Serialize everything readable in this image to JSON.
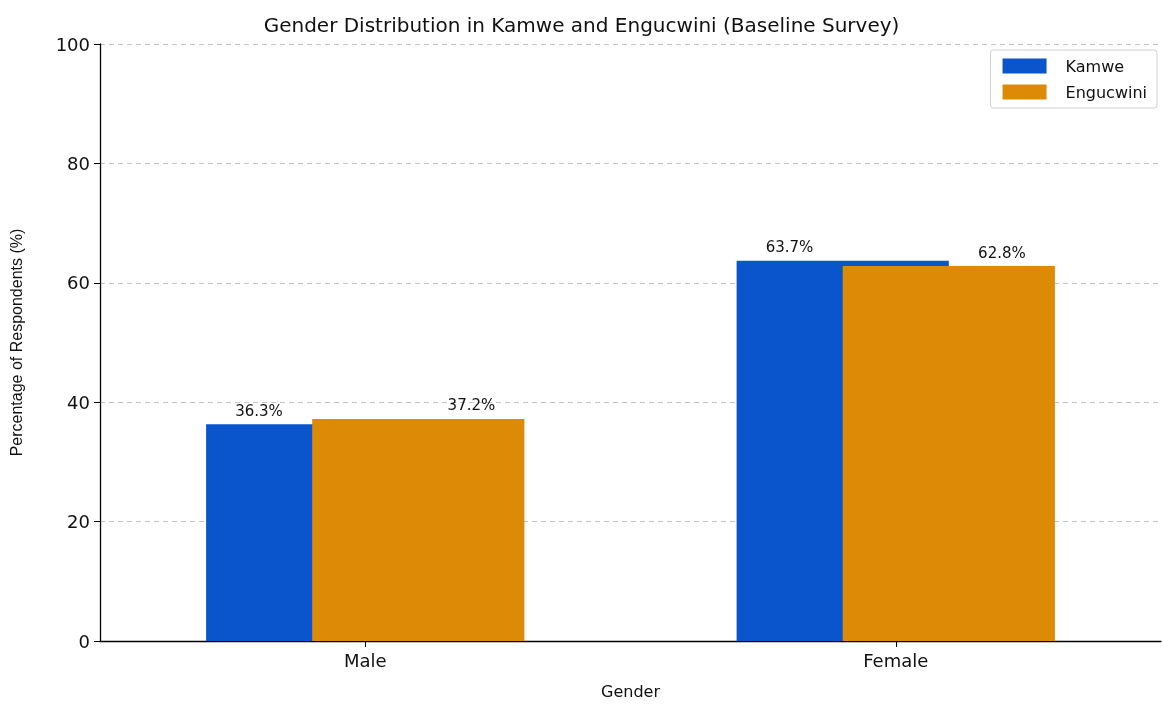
{
  "chart_data": {
    "type": "bar",
    "title": "Gender Distribution in Kamwe and Engucwini (Baseline Survey)",
    "xlabel": "Gender",
    "ylabel": "Percentage of Respondents (%)",
    "categories": [
      "Male",
      "Female"
    ],
    "series": [
      {
        "name": "Kamwe",
        "color": "#0b55cc",
        "values": [
          36.3,
          63.7
        ],
        "value_labels": [
          "36.3%",
          "63.7%"
        ]
      },
      {
        "name": "Engucwini",
        "color": "#dd8a06",
        "values": [
          37.2,
          62.8
        ],
        "value_labels": [
          "37.2%",
          "62.8%"
        ]
      }
    ],
    "ylim": [
      0,
      100
    ],
    "yticks": [
      0,
      20,
      40,
      60,
      80,
      100
    ],
    "grid": "y",
    "legend": "top right"
  }
}
